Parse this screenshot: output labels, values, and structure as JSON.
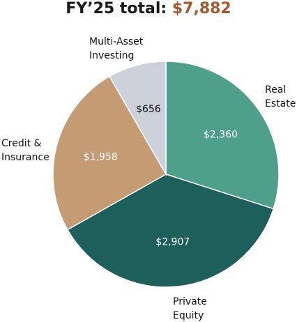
{
  "title": {
    "prefix": "FY’25 total: ",
    "value": "$7,882"
  },
  "colors": {
    "title_value": "#a05a2c",
    "text": "#1a1a1a"
  },
  "chart_data": {
    "type": "pie",
    "title": "FY’25 total: $7,882",
    "total": 7882,
    "legend": "none",
    "slices": [
      {
        "key": "real-estate",
        "label_lines": [
          "Real",
          "Estate"
        ],
        "value": 2360,
        "value_label": "$2,360",
        "color": "#4fa08a",
        "value_label_color": "#ffffff"
      },
      {
        "key": "private-equity",
        "label_lines": [
          "Private",
          "Equity"
        ],
        "value": 2907,
        "value_label": "$2,907",
        "color": "#1d5f5b",
        "value_label_color": "#ffffff"
      },
      {
        "key": "credit-insurance",
        "label_lines": [
          "Credit &",
          "Insurance"
        ],
        "value": 1958,
        "value_label": "$1,958",
        "color": "#c49b72",
        "value_label_color": "#ffffff"
      },
      {
        "key": "multi-asset-investing",
        "label_lines": [
          "Multi-Asset",
          "Investing"
        ],
        "value": 656,
        "value_label": "$656",
        "color": "#cdd1da",
        "value_label_color": "#111111"
      }
    ]
  }
}
